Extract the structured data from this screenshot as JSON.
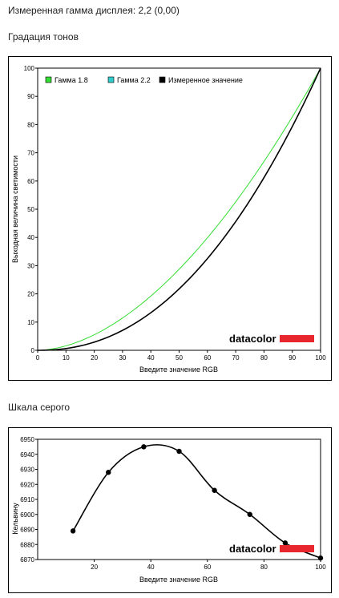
{
  "headings": {
    "measured_gamma": "Измеренная гамма дисплея: 2,2 (0,00)",
    "tone_gradation": "Градация тонов",
    "grey_scale": "Шкала серого"
  },
  "brand": {
    "logo_text": "datacolor",
    "logo_color": "#e8262d"
  },
  "chart_data": [
    {
      "type": "line",
      "title": "Градация тонов",
      "xlabel": "Введите значение RGB",
      "ylabel": "Выходная величина светимости",
      "xlim": [
        0,
        100
      ],
      "ylim": [
        0,
        100
      ],
      "x_ticks": [
        0,
        10,
        20,
        30,
        40,
        50,
        60,
        70,
        80,
        90,
        100
      ],
      "y_ticks": [
        0,
        10,
        20,
        30,
        40,
        50,
        60,
        70,
        80,
        90,
        100
      ],
      "grid": false,
      "legend_position": "top-left",
      "series": [
        {
          "name": "Гамма 1.8",
          "color": "#33dd33",
          "gamma": 1.8,
          "x": [
            0,
            10,
            20,
            30,
            40,
            50,
            60,
            70,
            80,
            90,
            100
          ],
          "y": [
            0,
            1.6,
            5.5,
            11.5,
            19.2,
            28.7,
            39.8,
            52.6,
            66.9,
            82.7,
            100
          ]
        },
        {
          "name": "Гамма 2.2",
          "color": "#33cccc",
          "gamma": 2.2,
          "x": [
            0,
            10,
            20,
            30,
            40,
            50,
            60,
            70,
            80,
            90,
            100
          ],
          "y": [
            0,
            0.6,
            2.9,
            7.1,
            13.3,
            21.8,
            32.6,
            45.6,
            61.2,
            79.3,
            100
          ]
        },
        {
          "name": "Измеренное значение",
          "color": "#000000",
          "gamma": 2.2,
          "x": [
            0,
            10,
            20,
            30,
            40,
            50,
            60,
            70,
            80,
            90,
            100
          ],
          "y": [
            0,
            0.6,
            2.9,
            7.1,
            13.3,
            21.8,
            32.6,
            45.6,
            61.2,
            79.3,
            100
          ]
        }
      ]
    },
    {
      "type": "line",
      "title": "Шкала серого",
      "xlabel": "Введите значение RGB",
      "ylabel": "Кельвину",
      "xlim": [
        0,
        100
      ],
      "ylim": [
        6870,
        6950
      ],
      "x_ticks": [
        20,
        40,
        60,
        80,
        100
      ],
      "y_ticks": [
        6870,
        6880,
        6890,
        6900,
        6910,
        6920,
        6930,
        6940,
        6950
      ],
      "grid": false,
      "series": [
        {
          "color": "#000000",
          "x": [
            12.5,
            25,
            37.5,
            50,
            62.5,
            75,
            87.5,
            100
          ],
          "y": [
            6889,
            6928,
            6945,
            6942,
            6916,
            6900,
            6881,
            6871
          ]
        }
      ]
    }
  ]
}
